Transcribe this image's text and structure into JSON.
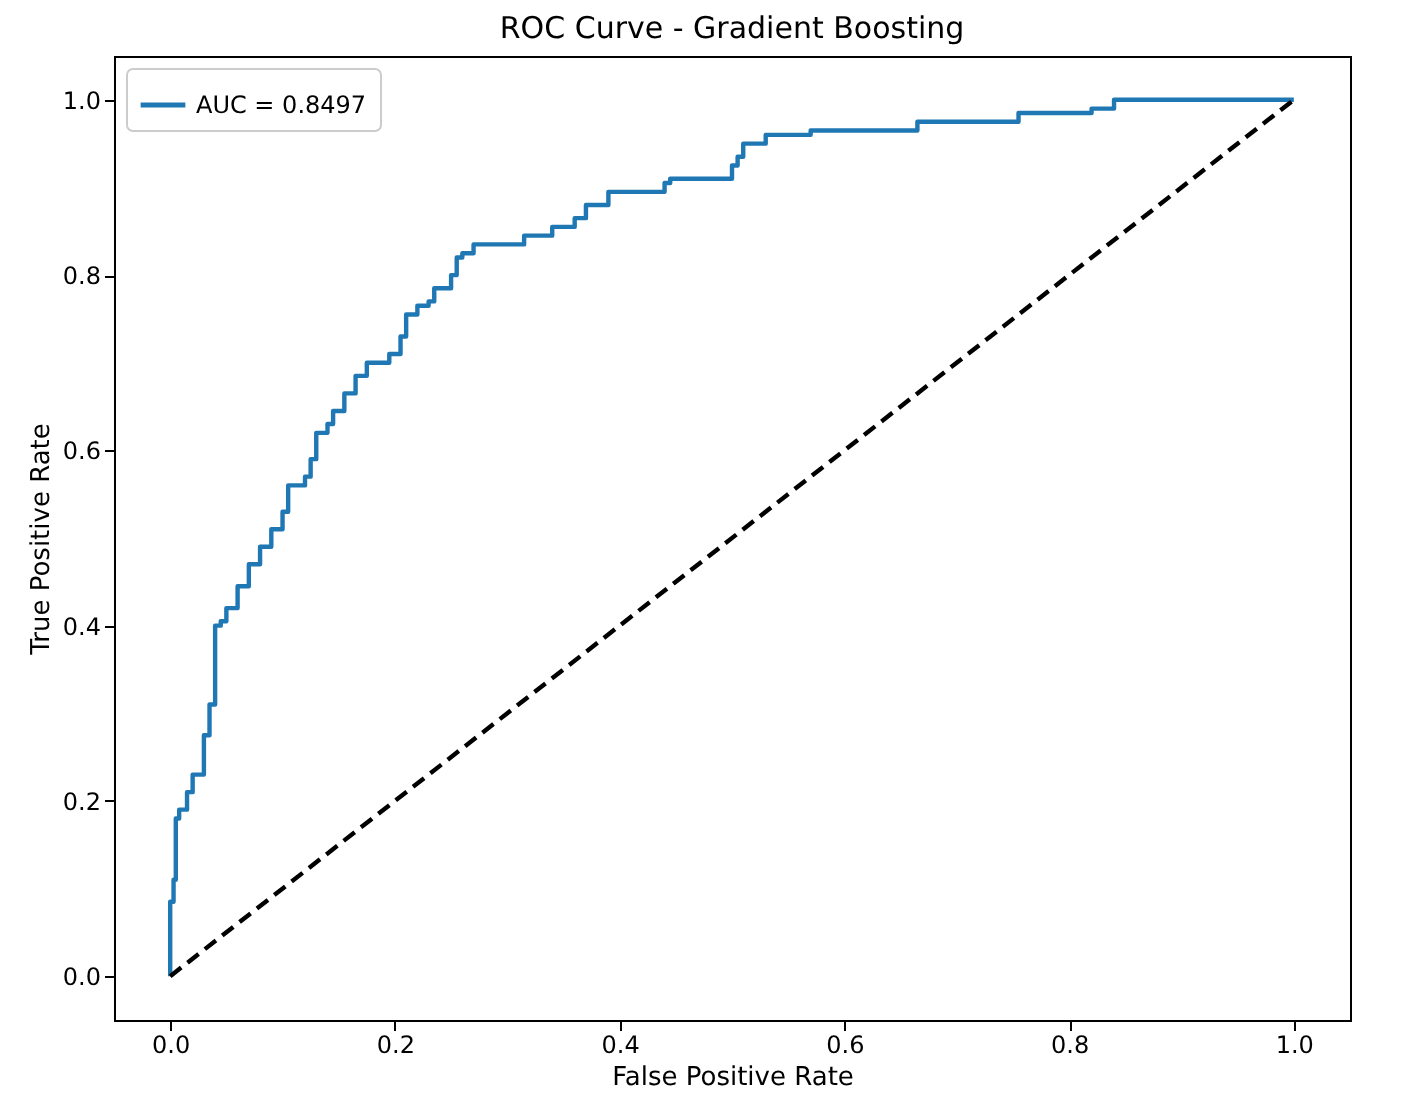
{
  "chart_data": {
    "type": "line",
    "title": "ROC Curve - Gradient Boosting",
    "xlabel": "False Positive Rate",
    "ylabel": "True Positive Rate",
    "xlim": [
      -0.05,
      1.05
    ],
    "ylim": [
      -0.05,
      1.05
    ],
    "xticks": [
      {
        "value": 0,
        "label": "0.0"
      },
      0.2,
      0.4,
      0.6,
      0.8,
      {
        "value": 1,
        "label": "1.0"
      }
    ],
    "yticks": [
      {
        "value": 0,
        "label": "0.0"
      },
      0.2,
      0.4,
      0.6,
      0.8,
      {
        "value": 1,
        "label": "1.0"
      }
    ],
    "grid": false,
    "legend": "top left",
    "series": [
      {
        "name": "AUC = 0.8497",
        "type": "step",
        "color": "#1f77b4",
        "line_style": "solid",
        "x": [
          0,
          0,
          0.003,
          0.005,
          0.008,
          0.015,
          0.02,
          0.02,
          0.03,
          0.035,
          0.035,
          0.04,
          0.04,
          0.045,
          0.05,
          0.06,
          0.07,
          0.08,
          0.09,
          0.1,
          0.105,
          0.12,
          0.125,
          0.13,
          0.14,
          0.145,
          0.155,
          0.165,
          0.175,
          0.19,
          0.195,
          0.205,
          0.21,
          0.22,
          0.23,
          0.235,
          0.25,
          0.255,
          0.26,
          0.27,
          0.31,
          0.315,
          0.34,
          0.36,
          0.37,
          0.39,
          0.43,
          0.44,
          0.445,
          0.5,
          0.505,
          0.51,
          0.53,
          0.57,
          0.665,
          0.755,
          0.82,
          0.84,
          1.0
        ],
        "values": [
          0,
          0.085,
          0.11,
          0.18,
          0.19,
          0.21,
          0.22,
          0.23,
          0.275,
          0.28,
          0.31,
          0.32,
          0.4,
          0.405,
          0.42,
          0.445,
          0.47,
          0.49,
          0.51,
          0.53,
          0.56,
          0.57,
          0.59,
          0.62,
          0.63,
          0.645,
          0.665,
          0.685,
          0.7,
          0.7,
          0.71,
          0.73,
          0.755,
          0.765,
          0.77,
          0.785,
          0.8,
          0.82,
          0.825,
          0.835,
          0.835,
          0.845,
          0.855,
          0.865,
          0.88,
          0.895,
          0.895,
          0.905,
          0.91,
          0.925,
          0.935,
          0.95,
          0.96,
          0.965,
          0.975,
          0.985,
          0.99,
          1.0,
          1.0
        ]
      },
      {
        "color": "#000000",
        "line_style": "dashed",
        "x": [
          0,
          1
        ],
        "values": [
          0,
          1
        ]
      }
    ]
  }
}
